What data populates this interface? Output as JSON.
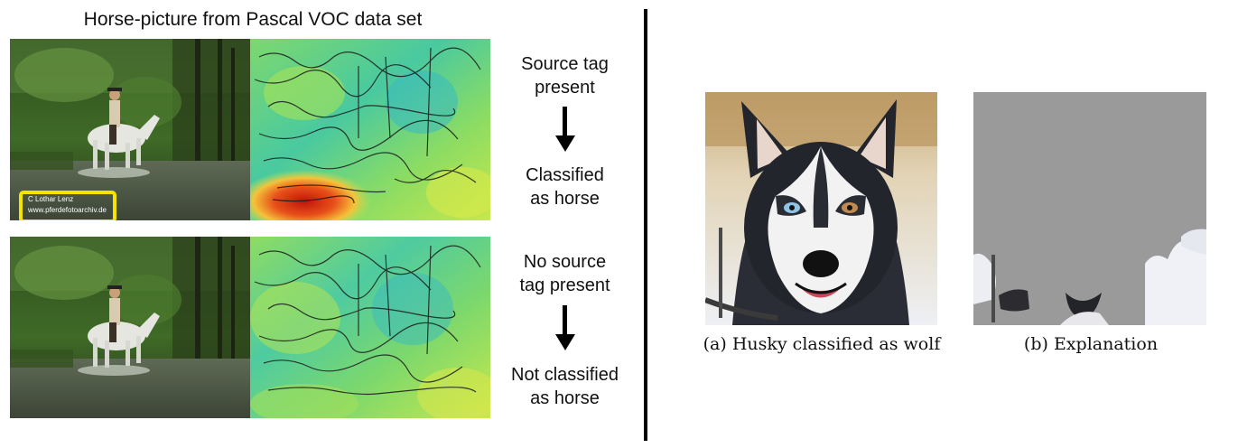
{
  "left_figure": {
    "title": "Horse-picture from Pascal VOC data set",
    "watermark": {
      "line1": "C   Lothar Lenz",
      "line2": "www.pferdefotoarchiv.de"
    },
    "top_row": {
      "line1": "Source tag",
      "line2": "present",
      "result_line1": "Classified",
      "result_line2": "as horse"
    },
    "bottom_row": {
      "line1": "No source",
      "line2": "tag present",
      "result_line1": "Not classified",
      "result_line2": "as horse"
    }
  },
  "right_figure": {
    "caption_a": "(a) Husky classified as wolf",
    "caption_b": "(b) Explanation"
  },
  "colors": {
    "highlight_box": "#f4e400",
    "heatmap_low": "#6fd07a",
    "heatmap_hot": "#d82010",
    "explanation_gray": "#9a9a9a"
  }
}
